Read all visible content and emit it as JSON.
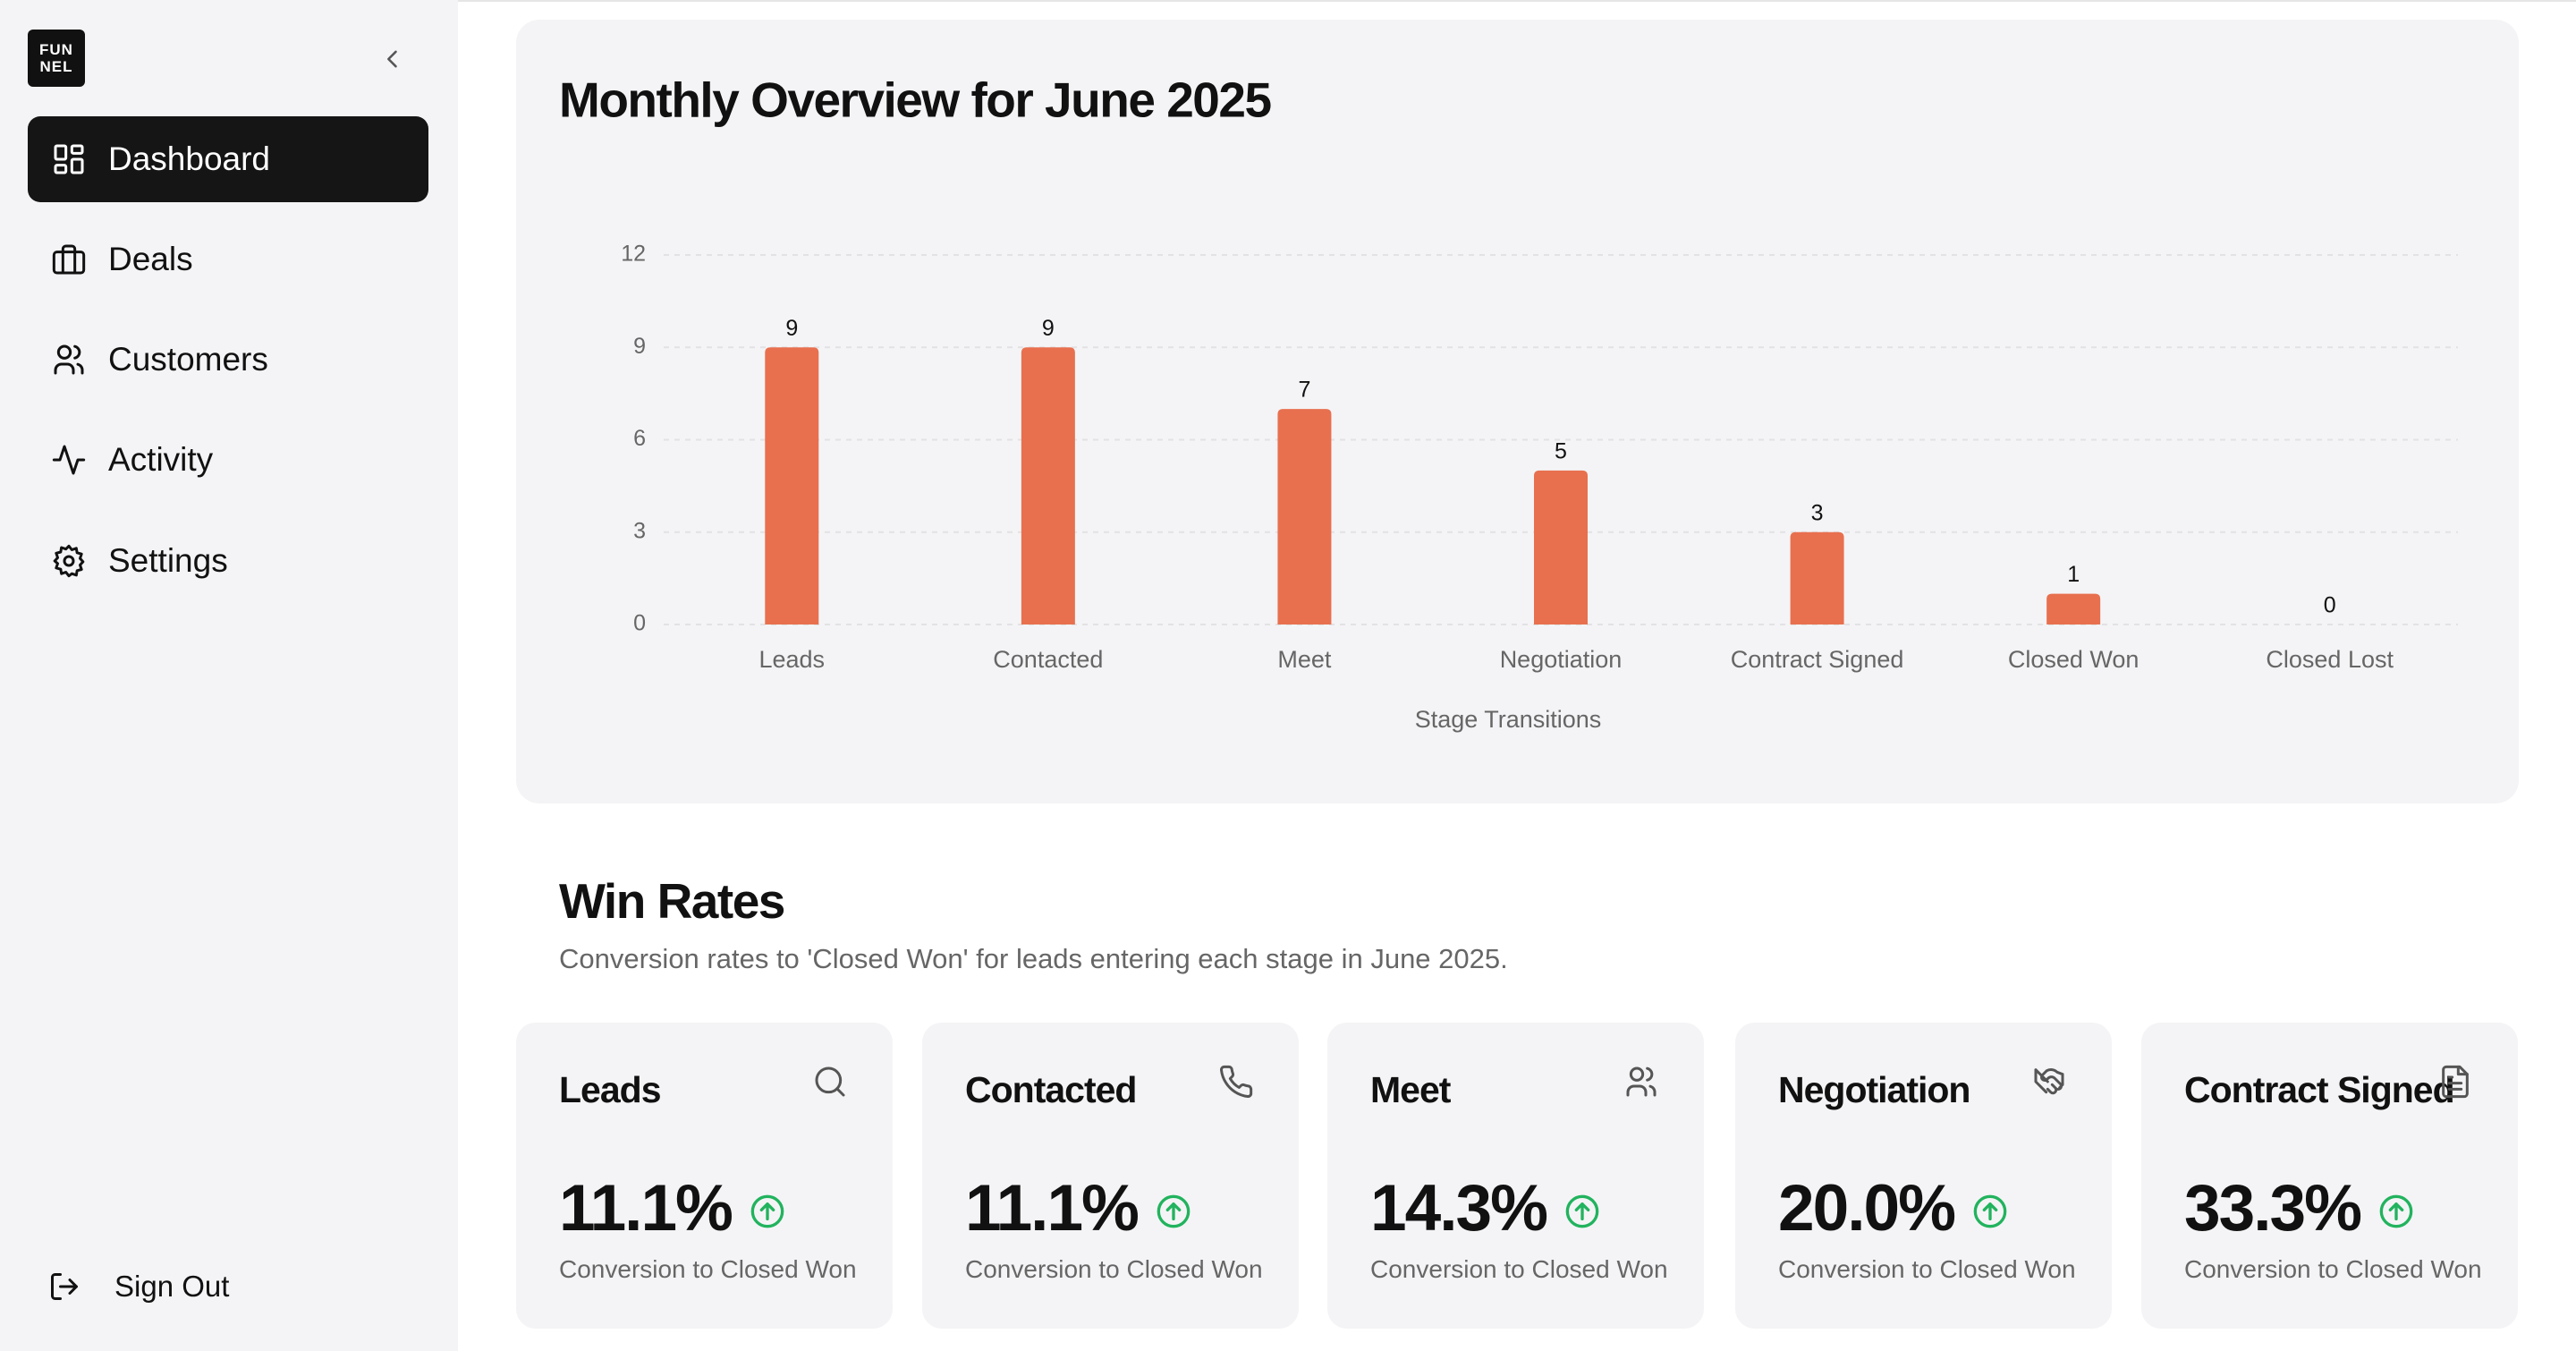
{
  "sidebar": {
    "logo": [
      "FUN",
      "NEL"
    ],
    "nav": [
      "Dashboard",
      "Deals",
      "Customers",
      "Activity",
      "Settings"
    ],
    "sign_out": "Sign Out"
  },
  "chart_data": {
    "type": "bar",
    "title": "Monthly Overview for June 2025",
    "x_label": "Stage Transitions",
    "categories": [
      "Leads",
      "Contacted",
      "Meet",
      "Negotiation",
      "Contract Signed",
      "Closed Won",
      "Closed Lost"
    ],
    "values": [
      9,
      9,
      7,
      5,
      3,
      1,
      0
    ],
    "color": "#e8704f",
    "ylim": [
      0,
      12
    ],
    "yticks": [
      0,
      3,
      6,
      9,
      12
    ],
    "grid": true
  },
  "win_rates": {
    "title": "Win Rates",
    "subtitle": "Conversion rates to 'Closed Won' for leads entering each stage in June 2025.",
    "cards": [
      {
        "title": "Leads",
        "value": "11.1%",
        "caption": "Conversion to Closed Won"
      },
      {
        "title": "Contacted",
        "value": "11.1%",
        "caption": "Conversion to Closed Won"
      },
      {
        "title": "Meet",
        "value": "14.3%",
        "caption": "Conversion to Closed Won"
      },
      {
        "title": "Negotiation",
        "value": "20.0%",
        "caption": "Conversion to Closed Won"
      },
      {
        "title": "Contract Signed",
        "value": "33.3%",
        "caption": "Conversion to Closed Won"
      }
    ]
  }
}
